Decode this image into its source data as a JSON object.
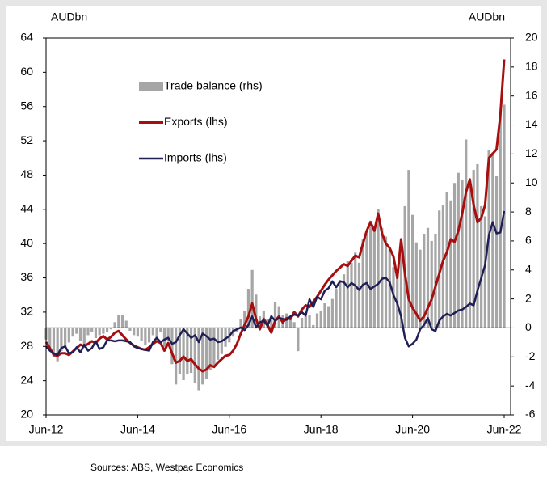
{
  "chart_data": {
    "type": "combo",
    "y_label": "AUDbn",
    "y2_label": "AUDbn",
    "source": "Sources: ABS, Westpac Economics",
    "legend": "upper left",
    "categories": [
      "Jun-12",
      null,
      null,
      null,
      null,
      null,
      null,
      null,
      null,
      null,
      null,
      null,
      null,
      null,
      null,
      null,
      null,
      null,
      null,
      null,
      null,
      null,
      null,
      null,
      "Jun-14",
      null,
      null,
      null,
      null,
      null,
      null,
      null,
      null,
      null,
      null,
      null,
      null,
      null,
      null,
      null,
      null,
      null,
      null,
      null,
      null,
      null,
      null,
      null,
      "Jun-16",
      null,
      null,
      null,
      null,
      null,
      null,
      null,
      null,
      null,
      null,
      null,
      null,
      null,
      null,
      null,
      null,
      null,
      null,
      null,
      null,
      null,
      null,
      null,
      "Jun-18",
      null,
      null,
      null,
      null,
      null,
      null,
      null,
      null,
      null,
      null,
      null,
      null,
      null,
      null,
      null,
      null,
      null,
      null,
      null,
      null,
      null,
      null,
      null,
      "Jun-20",
      null,
      null,
      null,
      null,
      null,
      null,
      null,
      null,
      null,
      null,
      null,
      null,
      null,
      null,
      null,
      null,
      null,
      null,
      null,
      null,
      null,
      null,
      null,
      "Jun-22"
    ],
    "ylim": [
      20,
      64
    ],
    "yticks": [
      20,
      24,
      28,
      32,
      36,
      40,
      44,
      48,
      52,
      56,
      60,
      64
    ],
    "y2lim": [
      -6,
      20
    ],
    "y2ticks": [
      -6,
      -4,
      -2,
      0,
      2,
      4,
      6,
      8,
      10,
      12,
      14,
      16,
      18,
      20
    ],
    "series": [
      {
        "name": "Trade balance (rhs)",
        "type": "bar",
        "axis": "y2",
        "color": "#a6a6a6",
        "values": [
          -0.8,
          -1.5,
          -2.0,
          -2.3,
          -1.6,
          -1.3,
          -1.0,
          -0.6,
          -0.4,
          -0.9,
          -1.2,
          -0.5,
          -0.3,
          -0.7,
          -0.5,
          -0.4,
          -0.3,
          -0.1,
          0.4,
          0.9,
          0.9,
          0.5,
          -0.2,
          -0.5,
          -0.6,
          -0.9,
          -1.2,
          -1.0,
          -0.5,
          -0.8,
          -0.3,
          -1.3,
          -0.9,
          -2.5,
          -3.9,
          -3.2,
          -3.6,
          -3.2,
          -3.1,
          -3.8,
          -4.3,
          -3.9,
          -3.5,
          -2.9,
          -2.7,
          -2.2,
          -1.8,
          -1.3,
          -1.0,
          -0.6,
          -0.3,
          0.6,
          1.2,
          2.7,
          4.0,
          2.3,
          0.8,
          1.2,
          0.6,
          0.9,
          1.8,
          1.5,
          0.9,
          1.0,
          0.7,
          0.4,
          -1.6,
          0.7,
          0.8,
          0.9,
          0.2,
          1.0,
          1.2,
          1.7,
          1.5,
          2.0,
          2.7,
          3.3,
          3.7,
          4.6,
          4.5,
          5.2,
          4.5,
          6.1,
          6.5,
          7.4,
          6.8,
          8.2,
          6.9,
          6.3,
          5.5,
          4.2,
          3.5,
          5.8,
          8.4,
          10.9,
          7.8,
          5.9,
          5.4,
          6.5,
          6.9,
          6.0,
          6.5,
          8.1,
          8.5,
          9.4,
          8.8,
          10.0,
          10.7,
          10.2,
          13.0,
          10.0,
          10.9,
          11.3,
          8.4,
          7.7,
          12.3,
          12.1,
          10.5,
          14.8,
          15.4
        ]
      },
      {
        "name": "Exports (lhs)",
        "type": "line",
        "axis": "y",
        "color": "#a50f0f",
        "values": [
          28.5,
          27.8,
          27.0,
          26.9,
          27.2,
          27.2,
          27.0,
          27.4,
          27.8,
          28.2,
          28.0,
          28.3,
          28.6,
          28.4,
          28.9,
          29.2,
          28.8,
          29.1,
          29.6,
          29.8,
          29.3,
          28.8,
          28.4,
          28.1,
          27.9,
          27.7,
          27.6,
          27.9,
          28.3,
          28.6,
          28.4,
          27.5,
          28.4,
          27.2,
          26.1,
          26.3,
          26.8,
          26.3,
          26.5,
          25.9,
          25.4,
          25.1,
          25.3,
          25.8,
          25.6,
          26.1,
          26.5,
          26.9,
          27.0,
          27.5,
          28.3,
          29.5,
          30.5,
          31.5,
          33.0,
          31.2,
          30.0,
          31.2,
          30.5,
          29.6,
          31.0,
          31.5,
          30.8,
          31.3,
          31.2,
          32.0,
          31.5,
          32.3,
          32.8,
          32.6,
          33.2,
          33.8,
          34.5,
          35.2,
          35.8,
          36.3,
          36.8,
          37.2,
          37.6,
          37.4,
          38.0,
          38.6,
          38.4,
          40.0,
          41.5,
          42.5,
          41.5,
          43.5,
          41.2,
          40.0,
          39.5,
          38.5,
          36.0,
          40.5,
          36.5,
          33.5,
          32.5,
          31.8,
          31.0,
          31.5,
          32.5,
          33.5,
          35.0,
          36.5,
          38.0,
          39.0,
          40.5,
          40.2,
          41.5,
          43.5,
          46.0,
          47.5,
          44.5,
          42.5,
          43.0,
          44.5,
          50.0,
          50.5,
          51.0,
          55.0,
          61.5
        ]
      },
      {
        "name": "Imports (lhs)",
        "type": "line",
        "axis": "y",
        "color": "#1f1f55",
        "values": [
          28.0,
          27.5,
          27.2,
          27.0,
          27.8,
          28.0,
          27.2,
          27.3,
          27.9,
          27.3,
          28.2,
          27.5,
          27.8,
          28.6,
          27.7,
          27.9,
          28.7,
          28.7,
          28.6,
          28.7,
          28.7,
          28.6,
          28.5,
          28.0,
          27.8,
          27.7,
          27.6,
          27.5,
          28.5,
          29.0,
          28.5,
          28.8,
          29.0,
          28.3,
          28.5,
          29.3,
          30.0,
          29.5,
          29.0,
          29.3,
          28.5,
          29.5,
          29.2,
          28.8,
          28.9,
          28.5,
          28.6,
          28.9,
          29.2,
          29.8,
          30.0,
          30.2,
          29.9,
          30.5,
          31.5,
          30.2,
          30.8,
          31.0,
          30.4,
          31.5,
          31.0,
          31.3,
          31.2,
          31.1,
          31.5,
          31.7,
          31.6,
          32.0,
          31.6,
          33.5,
          32.6,
          33.8,
          33.5,
          34.5,
          34.8,
          35.6,
          34.9,
          35.6,
          35.5,
          34.9,
          35.4,
          35.1,
          34.6,
          35.2,
          35.4,
          34.7,
          35.0,
          35.3,
          35.9,
          36.0,
          35.5,
          34.0,
          33.0,
          31.5,
          29.0,
          28.0,
          28.3,
          28.8,
          30.0,
          30.5,
          31.3,
          30.0,
          29.8,
          31.0,
          31.5,
          31.8,
          31.6,
          31.9,
          32.2,
          32.3,
          32.6,
          33.0,
          32.8,
          34.5,
          36.0,
          37.5,
          41.0,
          42.5,
          41.2,
          41.3,
          43.8
        ]
      }
    ]
  }
}
